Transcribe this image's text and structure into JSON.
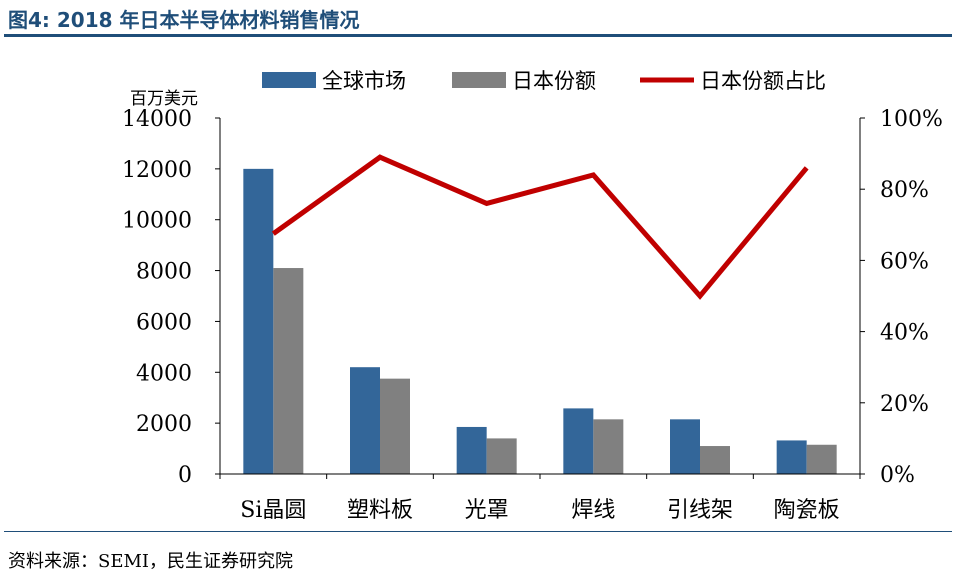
{
  "figure": {
    "title": "图4: 2018 年日本半导体材料销售情况",
    "source": "资料来源：SEMI，民生证券研究院"
  },
  "colors": {
    "global": "#336699",
    "japan": "#808080",
    "share": "#c00000",
    "title": "#1f4e79"
  },
  "chart_data": {
    "type": "bar",
    "categories": [
      "Si晶圆",
      "塑料板",
      "光罩",
      "焊线",
      "引线架",
      "陶瓷板"
    ],
    "series": [
      {
        "name": "全球市场",
        "type": "bar",
        "axis": "left",
        "values": [
          12000,
          4200,
          1850,
          2580,
          2150,
          1320
        ]
      },
      {
        "name": "日本份额",
        "type": "bar",
        "axis": "left",
        "values": [
          8100,
          3750,
          1400,
          2150,
          1100,
          1150
        ]
      },
      {
        "name": "日本份额占比",
        "type": "line",
        "axis": "right",
        "values": [
          0.675,
          0.89,
          0.76,
          0.84,
          0.5,
          0.86
        ]
      }
    ],
    "left_axis": {
      "label": "百万美元",
      "ylim": [
        0,
        14000
      ],
      "ticks": [
        0,
        2000,
        4000,
        6000,
        8000,
        10000,
        12000,
        14000
      ]
    },
    "right_axis": {
      "ylim": [
        0,
        1
      ],
      "ticks": [
        "0%",
        "20%",
        "40%",
        "60%",
        "80%",
        "100%"
      ]
    },
    "legend_position": "top",
    "grid": false
  }
}
